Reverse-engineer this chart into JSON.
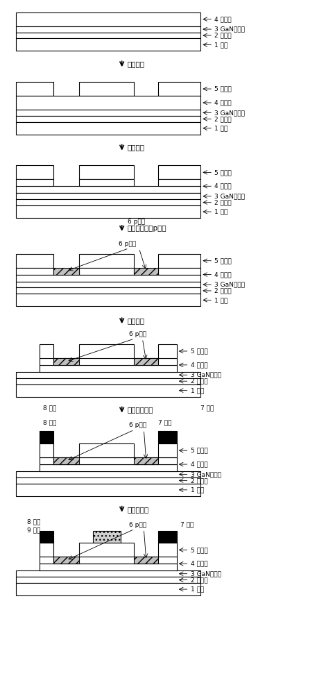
{
  "bg_color": "#ffffff",
  "lc": "#000000",
  "gray_hatch": "#b0b0b0",
  "labels1": [
    "4 势垒层",
    "3 GaN沟道层",
    "2 缓冲层",
    "1 衬底"
  ],
  "labels2": [
    "5 钝化层",
    "4 势垒层",
    "3 GaN沟道层",
    "2 缓冲层",
    "1 衬底"
  ],
  "proc1": "制备掩膜",
  "proc2": "制备凹槽",
  "proc3": "选区二次外延p型层",
  "proc4": "台面隔离",
  "proc5": "制备源漏电极",
  "proc6": "制备栅电极",
  "p_label": "6 p型层",
  "src_label": "8 源极",
  "gate_label": "9 栅极",
  "drain_label": "7 漏极"
}
